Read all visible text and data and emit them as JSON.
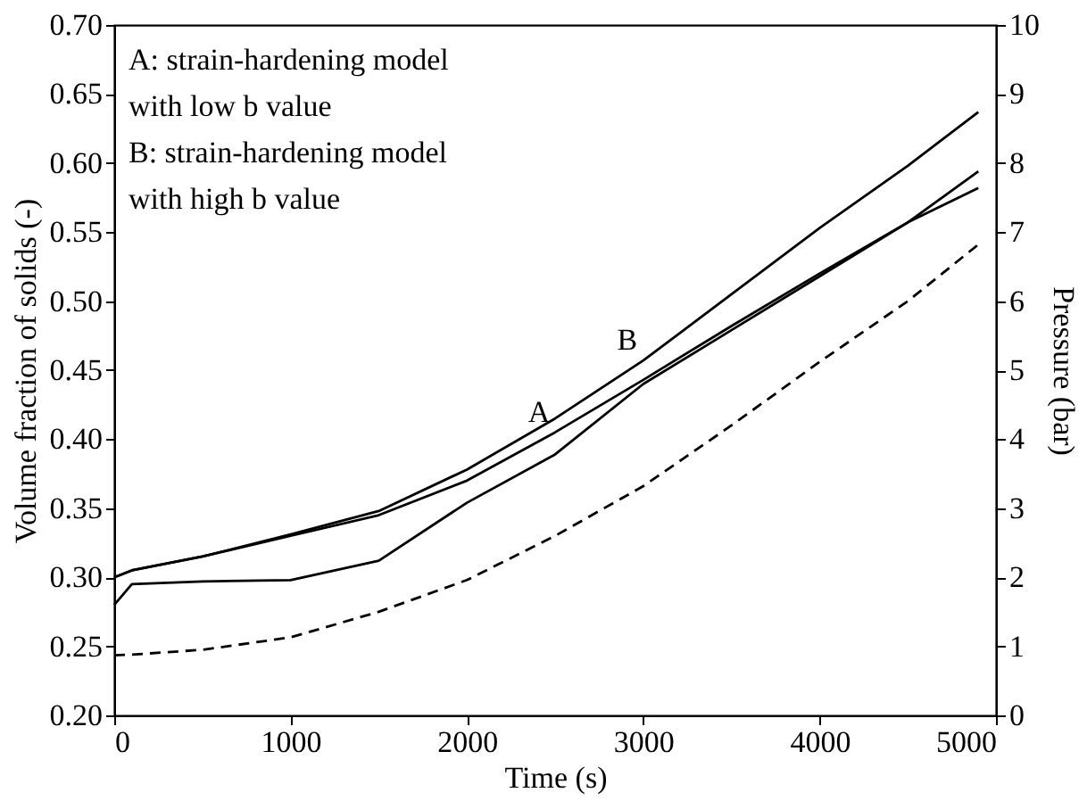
{
  "chart_data": {
    "type": "line",
    "xlabel": "Time (s)",
    "ylabel": "Volume fraction of solids (-)",
    "y2label": "Pressure (bar)",
    "x": [
      0,
      100,
      500,
      1000,
      1500,
      2000,
      2500,
      3000,
      3500,
      4000,
      4500,
      4900
    ],
    "xlim": [
      0,
      5000
    ],
    "xticks": [
      0,
      1000,
      2000,
      3000,
      4000,
      5000
    ],
    "ylim": [
      0.2,
      0.7
    ],
    "yticks": [
      {
        "value": 0.2,
        "label": "0.20"
      },
      {
        "value": 0.25,
        "label": "0.25"
      },
      {
        "value": 0.3,
        "label": "0.30"
      },
      {
        "value": 0.35,
        "label": "0.35"
      },
      {
        "value": 0.4,
        "label": "0.40"
      },
      {
        "value": 0.45,
        "label": "0.45"
      },
      {
        "value": 0.5,
        "label": "0.50"
      },
      {
        "value": 0.55,
        "label": "0.55"
      },
      {
        "value": 0.6,
        "label": "0.60"
      },
      {
        "value": 0.65,
        "label": "0.65"
      },
      {
        "value": 0.7,
        "label": "0.70"
      }
    ],
    "y2lim": [
      0,
      10
    ],
    "y2ticks": [
      0,
      1,
      2,
      3,
      4,
      5,
      6,
      7,
      8,
      9,
      10
    ],
    "grid": false,
    "series": [
      {
        "name": "A",
        "color": "#000000",
        "line_style": "solid",
        "values": [
          0.3,
          0.305,
          0.315,
          0.33,
          0.345,
          0.37,
          0.405,
          0.443,
          0.482,
          0.52,
          0.557,
          0.594
        ]
      },
      {
        "name": "B",
        "color": "#000000",
        "line_style": "solid",
        "values": [
          0.3,
          0.305,
          0.315,
          0.331,
          0.348,
          0.378,
          0.415,
          0.457,
          0.505,
          0.553,
          0.598,
          0.637
        ]
      },
      {
        "color": "#000000",
        "line_style": "solid",
        "values": [
          0.28,
          0.295,
          0.297,
          0.298,
          0.312,
          0.354,
          0.389,
          0.44,
          0.479,
          0.518,
          0.557,
          0.582
        ]
      },
      {
        "color": "#000000",
        "line_style": "dashed",
        "axis": "y2",
        "values": [
          0.87,
          0.88,
          0.95,
          1.13,
          1.5,
          1.96,
          2.6,
          3.32,
          4.2,
          5.12,
          6.0,
          6.82
        ]
      }
    ],
    "annotations": [
      "A: strain-hardening model\n     with low b value",
      "B: strain-hardening model\n     with high b value"
    ]
  }
}
